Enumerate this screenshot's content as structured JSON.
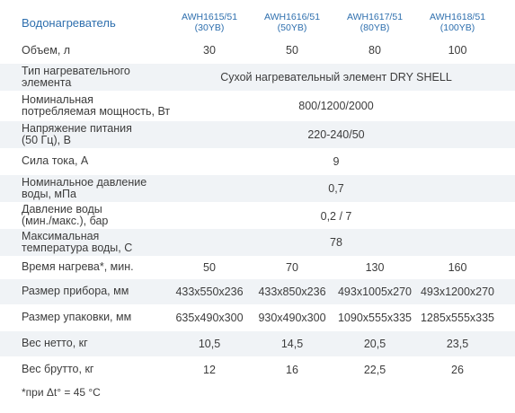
{
  "header": {
    "title": "Водонагреватель",
    "models": [
      {
        "code": "AWH1615/51",
        "volume": "(30YB)"
      },
      {
        "code": "AWH1616/51",
        "volume": "(50YB)"
      },
      {
        "code": "AWH1617/51",
        "volume": "(80YB)"
      },
      {
        "code": "AWH1618/51",
        "volume": "(100YB)"
      }
    ]
  },
  "rows": {
    "volume": {
      "label": "Объем, л",
      "values": [
        "30",
        "50",
        "80",
        "100"
      ]
    },
    "heater_type": {
      "label1": "Тип нагревательного",
      "label2": "элемента",
      "value": "Сухой нагревательный элемент DRY SHELL"
    },
    "power": {
      "label1": "Номинальная",
      "label2": "потребляемая мощность, Вт",
      "value": "800/1200/2000"
    },
    "voltage": {
      "label1": "Напряжение питания",
      "label2": "(50 Гц), В",
      "value": "220-240/50"
    },
    "current": {
      "label": "Сила тока, А",
      "value": "9"
    },
    "nominal_pressure": {
      "label1": "Номинальное давление",
      "label2": "воды, мПа",
      "value": "0,7"
    },
    "water_pressure": {
      "label1": "Давление воды",
      "label2": "(мин./макс.), бар",
      "value": "0,2 / 7"
    },
    "max_temp": {
      "label1": "Максимальная",
      "label2": "температура воды, С",
      "value": "78"
    },
    "heat_time": {
      "label": "Время нагрева*, мин.",
      "values": [
        "50",
        "70",
        "130",
        "160"
      ]
    },
    "device_size": {
      "label": "Размер прибора, мм",
      "values": [
        "433x550x236",
        "433x850x236",
        "493x1005x270",
        "493x1200x270"
      ]
    },
    "package_size": {
      "label": "Размер упаковки, мм",
      "values": [
        "635x490x300",
        "930x490x300",
        "1090x555x335",
        "1285x555x335"
      ]
    },
    "net_weight": {
      "label": "Вес нетто, кг",
      "values": [
        "10,5",
        "14,5",
        "20,5",
        "23,5"
      ]
    },
    "gross_weight": {
      "label": "Вес брутто, кг",
      "values": [
        "12",
        "16",
        "22,5",
        "26"
      ]
    }
  },
  "footnote": "*при Δt° = 45 °C",
  "colors": {
    "accent": "#2e6fae",
    "shade": "#f0f3f6"
  }
}
